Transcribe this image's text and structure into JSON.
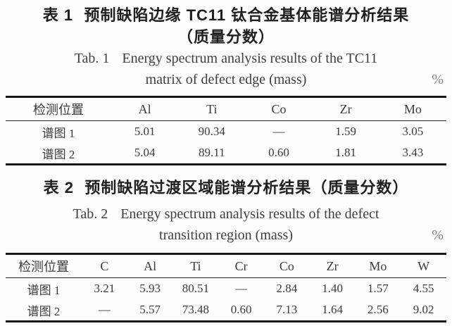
{
  "page": {
    "background": "#fdfdfd",
    "rule_color": "#161616",
    "text_color": "#3a3a3a",
    "unit_color": "#7c868c"
  },
  "table1": {
    "caption_zh": {
      "label": "表 1",
      "text": "预制缺陷边缘 TC11 钛合金基体能谱分析结果",
      "text2": "（质量分数）"
    },
    "caption_en": {
      "label": "Tab. 1",
      "text": "Energy spectrum analysis results of the TC11",
      "text2": "matrix of defect edge (mass)"
    },
    "unit": "%",
    "headers": [
      "检测位置",
      "Al",
      "Ti",
      "Co",
      "Zr",
      "Mo"
    ],
    "rows": [
      [
        "谱图 1",
        "5.01",
        "90.34",
        "—",
        "1.59",
        "3.05"
      ],
      [
        "谱图 2",
        "5.04",
        "89.11",
        "0.60",
        "1.81",
        "3.43"
      ]
    ]
  },
  "table2": {
    "caption_zh": {
      "label": "表 2",
      "text": "预制缺陷过渡区域能谱分析结果（质量分数）"
    },
    "caption_en": {
      "label": "Tab. 2",
      "text": "Energy spectrum analysis results of the defect",
      "text2": "transition region (mass)"
    },
    "unit": "%",
    "headers": [
      "检测位置",
      "C",
      "Al",
      "Ti",
      "Cr",
      "Co",
      "Zr",
      "Mo",
      "W"
    ],
    "rows": [
      [
        "谱图 1",
        "3.21",
        "5.93",
        "80.51",
        "—",
        "2.84",
        "1.40",
        "1.57",
        "4.55"
      ],
      [
        "谱图 2",
        "—",
        "5.57",
        "73.48",
        "0.60",
        "7.13",
        "1.64",
        "2.56",
        "9.02"
      ]
    ]
  }
}
